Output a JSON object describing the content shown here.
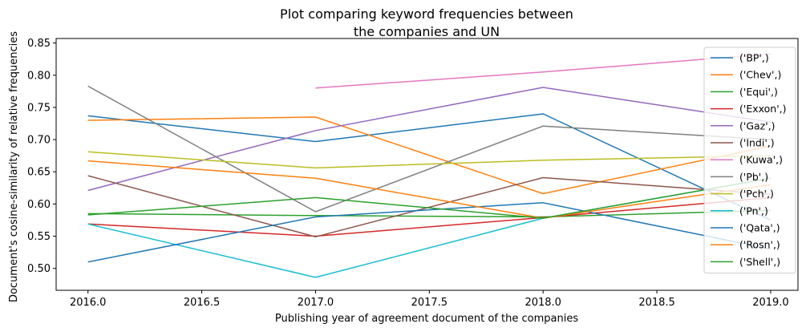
{
  "chart_data": {
    "type": "line",
    "title_lines": [
      "Plot comparing keyword frequencies between",
      "the companies and UN"
    ],
    "xlabel": "Publishing year of agreement document of the companies",
    "ylabel": "Document's cosine-similarity of relative frequencies",
    "xlim": [
      2015.86,
      2019.12
    ],
    "ylim": [
      0.466,
      0.857
    ],
    "xticks": [
      2016.0,
      2016.5,
      2017.0,
      2017.5,
      2018.0,
      2018.5,
      2019.0
    ],
    "xtick_labels": [
      "2016.0",
      "2016.5",
      "2017.0",
      "2017.5",
      "2018.0",
      "2018.5",
      "2019.0"
    ],
    "yticks": [
      0.5,
      0.55,
      0.6,
      0.65,
      0.7,
      0.75,
      0.8,
      0.85
    ],
    "ytick_labels": [
      "0.50",
      "0.55",
      "0.60",
      "0.65",
      "0.70",
      "0.75",
      "0.80",
      "0.85"
    ],
    "grid": false,
    "legend_position": "right",
    "x": [
      2016,
      2017,
      2018,
      2019
    ],
    "series": [
      {
        "name": "('BP',)",
        "color": "#1f77b4",
        "values": [
          0.737,
          0.697,
          0.74,
          0.575
        ]
      },
      {
        "name": "('Chev',)",
        "color": "#ff7f0e",
        "values": [
          0.73,
          0.735,
          0.616,
          0.69
        ]
      },
      {
        "name": "('Equi',)",
        "color": "#2ca02c",
        "values": [
          0.585,
          0.582,
          0.58,
          0.59
        ]
      },
      {
        "name": "('Exxon',)",
        "color": "#d62728",
        "values": [
          0.569,
          0.55,
          0.579,
          0.61
        ]
      },
      {
        "name": "('Gaz',)",
        "color": "#9467bd",
        "values": [
          0.621,
          0.714,
          0.781,
          0.727
        ]
      },
      {
        "name": "('Indi',)",
        "color": "#8c564b",
        "values": [
          0.644,
          0.549,
          0.641,
          0.615
        ]
      },
      {
        "name": "('Kuwa',)",
        "color": "#e377c2",
        "values": [
          null,
          0.78,
          0.805,
          0.833
        ]
      },
      {
        "name": "('Pb',)",
        "color": "#7f7f7f",
        "values": [
          0.783,
          0.588,
          0.721,
          0.7
        ]
      },
      {
        "name": "('Pch',)",
        "color": "#bcbd22",
        "values": [
          0.681,
          0.656,
          0.668,
          0.675
        ]
      },
      {
        "name": "('Pn',)",
        "color": "#17becf",
        "values": [
          0.569,
          0.486,
          0.578,
          0.64
        ]
      },
      {
        "name": "('Qata',)",
        "color": "#1f77b4",
        "values": [
          0.51,
          0.58,
          0.602,
          0.53
        ]
      },
      {
        "name": "('Rosn',)",
        "color": "#ff7f0e",
        "values": [
          0.667,
          0.64,
          0.578,
          0.63
        ]
      },
      {
        "name": "('Shell',)",
        "color": "#2ca02c",
        "values": [
          0.583,
          0.61,
          0.578,
          0.64
        ]
      }
    ]
  }
}
